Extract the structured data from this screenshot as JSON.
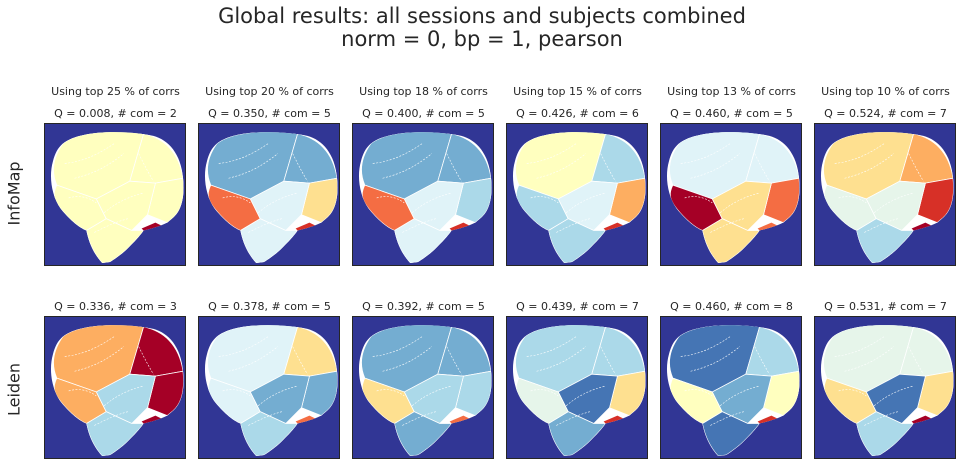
{
  "figure": {
    "title_line1": "Global results: all sessions and subjects combined",
    "title_line2": "norm = 0,   bp = 1,   pearson",
    "row_labels": [
      "InfoMap",
      "Leiden"
    ]
  },
  "colors": {
    "background": "#313695",
    "palette": [
      "#a50026",
      "#d73027",
      "#f46d43",
      "#fdae61",
      "#fee090",
      "#ffffbf",
      "#e0f3f8",
      "#abd9e9",
      "#74add1",
      "#4575b4",
      "#e6f5ea"
    ]
  },
  "chart_data": [
    {
      "type": "heatmap",
      "method": "InfoMap",
      "title": "Using top 25 % of corrs",
      "subtitle": "Q = 0.008,  # com = 2",
      "Q": 0.008,
      "n_communities": 2,
      "top_percent": 25,
      "region_colors": [
        "#ffffbf",
        "#ffffbf",
        "#ffffbf",
        "#ffffbf",
        "#ffffbf",
        "#ffffbf"
      ],
      "accent_color": "#a50026"
    },
    {
      "type": "heatmap",
      "method": "InfoMap",
      "title": "Using top 20 % of corrs",
      "subtitle": "Q = 0.350,  # com = 5",
      "Q": 0.35,
      "n_communities": 5,
      "top_percent": 20,
      "region_colors": [
        "#74add1",
        "#74add1",
        "#fee090",
        "#e0f3f8",
        "#e0f3f8",
        "#f46d43"
      ],
      "accent_color": "#d73027"
    },
    {
      "type": "heatmap",
      "method": "InfoMap",
      "title": "Using top 18 % of corrs",
      "subtitle": "Q = 0.400,  # com = 5",
      "Q": 0.4,
      "n_communities": 5,
      "top_percent": 18,
      "region_colors": [
        "#74add1",
        "#74add1",
        "#abd9e9",
        "#e0f3f8",
        "#e0f3f8",
        "#f46d43"
      ],
      "accent_color": "#d73027"
    },
    {
      "type": "heatmap",
      "method": "InfoMap",
      "title": "Using top 15 % of corrs",
      "subtitle": "Q = 0.426,  # com = 6",
      "Q": 0.426,
      "n_communities": 6,
      "top_percent": 15,
      "region_colors": [
        "#ffffbf",
        "#abd9e9",
        "#fdae61",
        "#e0f3f8",
        "#abd9e9",
        "#abd9e9"
      ],
      "accent_color": "#d73027"
    },
    {
      "type": "heatmap",
      "method": "InfoMap",
      "title": "Using top 13 % of corrs",
      "subtitle": "Q = 0.460,  # com = 5",
      "Q": 0.46,
      "n_communities": 5,
      "top_percent": 13,
      "region_colors": [
        "#e0f3f8",
        "#e0f3f8",
        "#f46d43",
        "#fee090",
        "#fee090",
        "#a50026"
      ],
      "accent_color": "#f46d43"
    },
    {
      "type": "heatmap",
      "method": "InfoMap",
      "title": "Using top 10 % of corrs",
      "subtitle": "Q = 0.524,  # com = 7",
      "Q": 0.524,
      "n_communities": 7,
      "top_percent": 10,
      "region_colors": [
        "#fee090",
        "#fdae61",
        "#d73027",
        "#e6f5ea",
        "#abd9e9",
        "#e6f5ea"
      ],
      "accent_color": "#a50026"
    },
    {
      "type": "heatmap",
      "method": "Leiden",
      "title": "",
      "subtitle": "Q = 0.336,  # com = 3",
      "Q": 0.336,
      "n_communities": 3,
      "region_colors": [
        "#fdae61",
        "#a50026",
        "#a50026",
        "#abd9e9",
        "#abd9e9",
        "#fdae61"
      ],
      "accent_color": "#a50026"
    },
    {
      "type": "heatmap",
      "method": "Leiden",
      "title": "",
      "subtitle": "Q = 0.378,  # com = 5",
      "Q": 0.378,
      "n_communities": 5,
      "region_colors": [
        "#e0f3f8",
        "#fee090",
        "#74add1",
        "#74add1",
        "#abd9e9",
        "#e0f3f8"
      ],
      "accent_color": "#f46d43"
    },
    {
      "type": "heatmap",
      "method": "Leiden",
      "title": "",
      "subtitle": "Q = 0.392,  # com = 5",
      "Q": 0.392,
      "n_communities": 5,
      "region_colors": [
        "#74add1",
        "#74add1",
        "#abd9e9",
        "#abd9e9",
        "#74add1",
        "#fee090"
      ],
      "accent_color": "#f46d43"
    },
    {
      "type": "heatmap",
      "method": "Leiden",
      "title": "",
      "subtitle": "Q = 0.439,  # com = 7",
      "Q": 0.439,
      "n_communities": 7,
      "region_colors": [
        "#abd9e9",
        "#abd9e9",
        "#fee090",
        "#4575b4",
        "#74add1",
        "#e6f5ea"
      ],
      "accent_color": "#d73027"
    },
    {
      "type": "heatmap",
      "method": "Leiden",
      "title": "",
      "subtitle": "Q = 0.460,  # com = 8",
      "Q": 0.46,
      "n_communities": 8,
      "region_colors": [
        "#4575b4",
        "#abd9e9",
        "#ffffbf",
        "#74add1",
        "#4575b4",
        "#ffffbf"
      ],
      "accent_color": "#d73027"
    },
    {
      "type": "heatmap",
      "method": "Leiden",
      "title": "",
      "subtitle": "Q = 0.531,  # com = 7",
      "Q": 0.531,
      "n_communities": 7,
      "region_colors": [
        "#e6f5ea",
        "#e6f5ea",
        "#fee090",
        "#4575b4",
        "#abd9e9",
        "#fee090"
      ],
      "accent_color": "#a50026"
    }
  ]
}
